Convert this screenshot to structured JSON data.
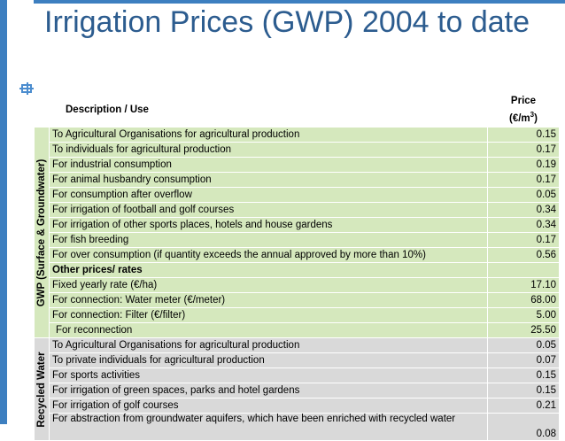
{
  "slide": {
    "title": "Irrigation Prices (GWP) 2004 to date"
  },
  "table": {
    "header": {
      "description": "Description / Use",
      "price_line1": "Price",
      "price_line2": "(€/m",
      "price_sup": "3",
      "price_close": ")"
    },
    "groups": {
      "gwp_label": "GWP (Surface & Groundwater)",
      "recycled_label": "Recycled Water"
    },
    "gwp_rows": [
      {
        "desc": "To Agricultural Organisations for agricultural production",
        "price": "0.15"
      },
      {
        "desc": "To individuals for agricultural production",
        "price": "0.17"
      },
      {
        "desc": "For industrial consumption",
        "price": "0.19"
      },
      {
        "desc": "For animal husbandry consumption",
        "price": "0.17"
      },
      {
        "desc": "For consumption after overflow",
        "price": "0.05"
      },
      {
        "desc": "For irrigation of football and golf courses",
        "price": "0.34"
      },
      {
        "desc": "For irrigation of other sports places, hotels and house gardens",
        "price": "0.34"
      },
      {
        "desc": "For fish breeding",
        "price": "0.17"
      },
      {
        "desc": "For over consumption (if quantity exceeds the annual approved by more than 10%)",
        "price": "0.56"
      },
      {
        "desc": "Other prices/ rates",
        "price": ""
      },
      {
        "desc": "Fixed yearly rate (€/ha)",
        "price": "17.10"
      },
      {
        "desc": "For connection: Water meter (€/meter)",
        "price": "68.00"
      },
      {
        "desc": "For connection: Filter (€/filter)",
        "price": "5.00"
      },
      {
        "desc": "For reconnection",
        "price": "25.50"
      }
    ],
    "recycled_rows": [
      {
        "desc": "To Agricultural Organisations for agricultural production",
        "price": "0.05"
      },
      {
        "desc": "To private individuals for agricultural production",
        "price": "0.07"
      },
      {
        "desc": "For sports activities",
        "price": "0.15"
      },
      {
        "desc": "For irrigation of green spaces, parks and hotel gardens",
        "price": "0.15"
      },
      {
        "desc": "For irrigation of golf courses",
        "price": "0.21"
      },
      {
        "desc": "For abstraction from groundwater aquifers, which have been enriched with recycled water",
        "price": "0.08"
      }
    ]
  }
}
